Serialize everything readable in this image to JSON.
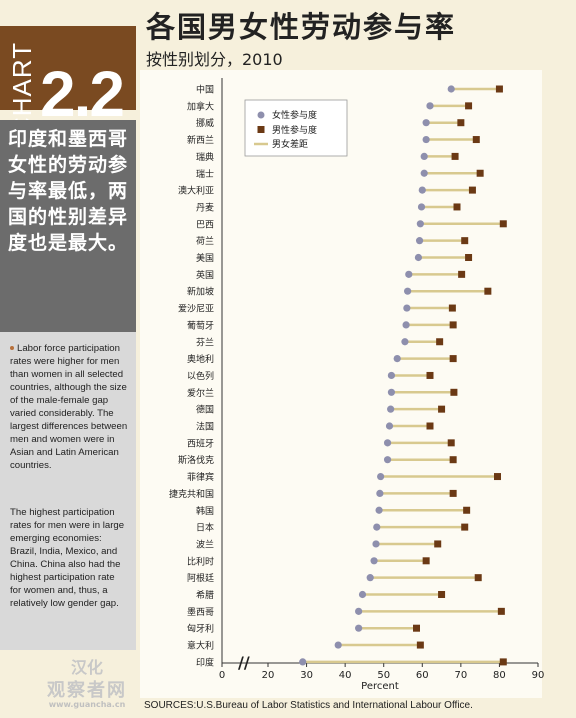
{
  "header": {
    "chart_word": "CHART",
    "chart_number": "2.2",
    "title": "各国男女性劳动参与率",
    "subtitle": "按性别划分，2010"
  },
  "sidebar": {
    "headline": "印度和墨西哥女性的劳动参与率最低，两国的性别差异度也是最大。",
    "paragraph1": "Labor force participation rates were higher for men than women in all selected countries, although the size of the male-female gap varied considerably. The largest differences between men and women were in Asian and Latin American countries.",
    "paragraph2": "The highest participation rates for men were in large emerging economies: Brazil, India, Mexico, and China. China also had the highest participation rate for women and, thus, a relatively low gender gap."
  },
  "watermark": {
    "line1": "汉化",
    "line2": "观察者网",
    "line3": "www.guancha.cn"
  },
  "footer": {
    "sources": "SOURCES:U.S.Bureau of Labor Statistics and International Labour Office."
  },
  "colors": {
    "female": "#8e8fad",
    "male": "#6b3914",
    "gap": "#d8c98f",
    "accent": "#7a4a21"
  },
  "chart_data": {
    "type": "dot",
    "xlabel": "Percent",
    "xlim": [
      0,
      90
    ],
    "x_ticks": [
      "0",
      "20",
      "30",
      "40",
      "50",
      "60",
      "70",
      "80",
      "90"
    ],
    "axis_break": "//",
    "legend": {
      "placement": "top-left",
      "entries": [
        "女性参与度",
        "男性参与度",
        "男女差距"
      ]
    },
    "categories": [
      "中国",
      "加拿大",
      "挪威",
      "新西兰",
      "瑞典",
      "瑞士",
      "澳大利亚",
      "丹麦",
      "巴西",
      "荷兰",
      "美国",
      "英国",
      "新加坡",
      "爱沙尼亚",
      "葡萄牙",
      "芬兰",
      "奥地利",
      "以色列",
      "爱尔兰",
      "德国",
      "法国",
      "西班牙",
      "斯洛伐克",
      "菲律宾",
      "捷克共和国",
      "韩国",
      "日本",
      "波兰",
      "比利时",
      "阿根廷",
      "希腊",
      "墨西哥",
      "匈牙利",
      "意大利",
      "印度"
    ],
    "series": [
      {
        "name": "女性参与度",
        "values": [
          67.5,
          62,
          61,
          61,
          60.5,
          60.5,
          60,
          59.8,
          59.5,
          59.3,
          59,
          56.5,
          56.2,
          56,
          55.8,
          55.5,
          53.5,
          52,
          52,
          51.8,
          51.5,
          51,
          51,
          49.2,
          49,
          48.8,
          48.2,
          48,
          47.5,
          46.5,
          44.5,
          43.5,
          43.5,
          38.2,
          29
        ]
      },
      {
        "name": "男性参与度",
        "values": [
          80,
          72,
          70,
          74,
          68.5,
          75,
          73,
          69,
          81,
          71,
          72,
          70.2,
          77,
          67.8,
          68,
          64.5,
          68,
          62,
          68.2,
          65,
          62,
          67.5,
          68,
          79.5,
          68,
          71.5,
          71,
          64,
          61,
          74.5,
          65,
          80.5,
          58.5,
          59.5,
          81
        ]
      }
    ]
  }
}
